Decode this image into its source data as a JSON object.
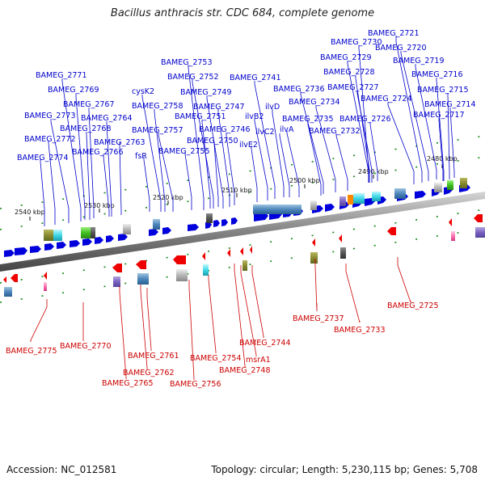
{
  "title": "Bacillus anthracis str. CDC 684, complete genome",
  "footer": {
    "accession": "Accession: NC_012581",
    "summary": "Topology: circular; Length: 5,230,115 bp; Genes: 5,708"
  },
  "colors": {
    "forward": "#0000dd",
    "reverse": "#ee0000",
    "backbone": "#808080",
    "tick": "#228822"
  },
  "ticks": [
    "2540 kbp",
    "2530 kbp",
    "2520 kbp",
    "2510 kbp",
    "2500 kbp",
    "2490 kbp",
    "2480 kbp"
  ],
  "forward_labels": [
    "BAMEG_2721",
    "BAMEG_2730",
    "BAMEG_2720",
    "BAMEG_2729",
    "BAMEG_2719",
    "BAMEG_2753",
    "BAMEG_2728",
    "BAMEG_2716",
    "BAMEG_2771",
    "BAMEG_2752",
    "BAMEG_2741",
    "BAMEG_2736",
    "BAMEG_2727",
    "BAMEG_2715",
    "BAMEG_2769",
    "cysK2",
    "BAMEG_2749",
    "BAMEG_2724",
    "BAMEG_2767",
    "BAMEG_2758",
    "BAMEG_2747",
    "ilvD",
    "BAMEG_2734",
    "BAMEG_2714",
    "BAMEG_2773",
    "BAMEG_2764",
    "BAMEG_2751",
    "ilvB2",
    "BAMEG_2735",
    "BAMEG_2726",
    "BAMEG_2717",
    "BAMEG_2768",
    "BAMEG_2757",
    "BAMEG_2746",
    "ilvC2",
    "ilvA",
    "BAMEG_2732",
    "BAMEG_2772",
    "BAMEG_2763",
    "BAMEG_2750",
    "ilvE2",
    "BAMEG_2774",
    "BAMEG_2766",
    "fsR",
    "BAMEG_2755"
  ],
  "reverse_labels": [
    "BAMEG_2737",
    "BAMEG_2725",
    "BAMEG_2733",
    "BAMEG_2775",
    "BAMEG_2770",
    "BAMEG_2744",
    "BAMEG_2761",
    "BAMEG_2754",
    "msrA1",
    "BAMEG_2748",
    "BAMEG_2762",
    "BAMEG_2765",
    "BAMEG_2756"
  ]
}
